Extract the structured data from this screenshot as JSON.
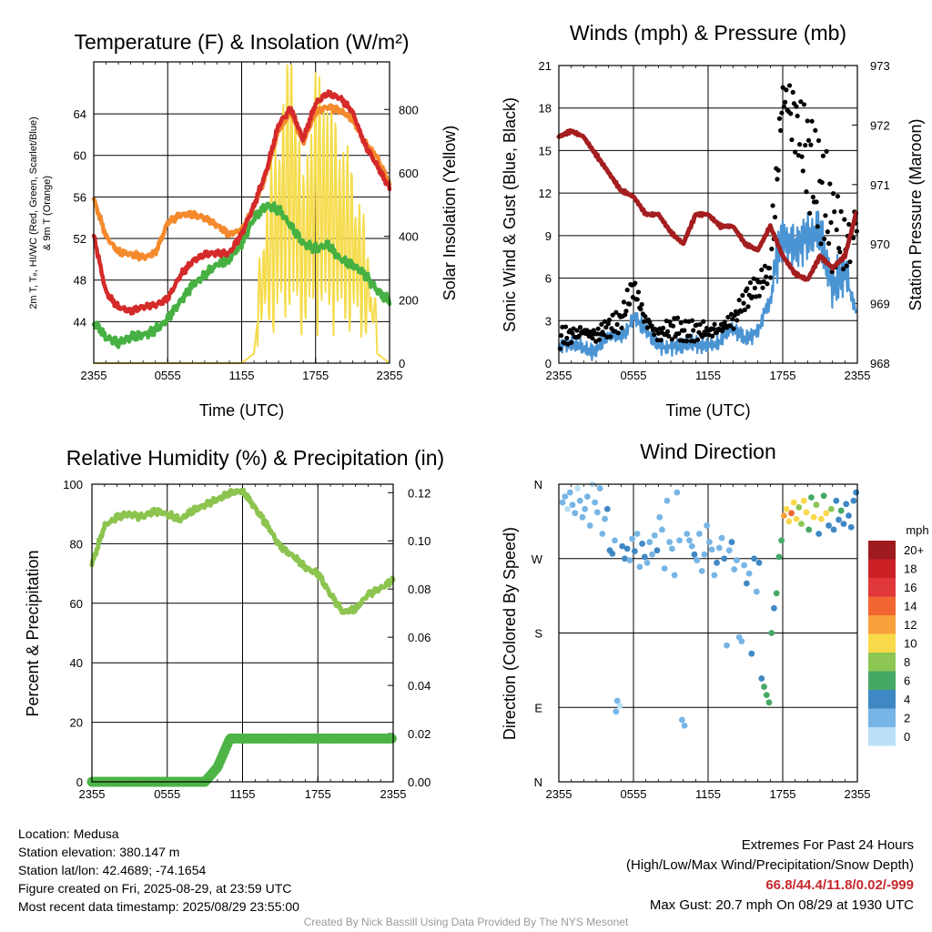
{
  "colors": {
    "temp_red": "#d42a29",
    "td_green": "#46b142",
    "hiwc_scarlet": "#e8533a",
    "hiwc_blue": "#4a8fd1",
    "t9m_orange": "#f58a2c",
    "insolation_yellow": "#f6dc4e",
    "wind_blue": "#4b94d3",
    "gust_black": "#000000",
    "pressure_maroon": "#a41e20",
    "rh_green": "#8cc44f",
    "precip_green": "#4db445"
  },
  "panels": {
    "temp": {
      "title": "Temperature (F) & Insolation (W/m²)",
      "ylabel_lines": [
        "2m T, Tₑ, HI/WC (Red, Green, Scarlet/Blue)",
        "& 9m T (Orange)"
      ],
      "ylabel_right": "Solar Insolation (Yellow)",
      "xlabel": "Time (UTC)"
    },
    "wind": {
      "title": "Winds (mph) & Pressure (mb)",
      "ylabel": "Sonic Wind & Gust (Blue, Black)",
      "ylabel_right": "Station Pressure (Maroon)",
      "xlabel": "Time (UTC)"
    },
    "rh": {
      "title": "Relative Humidity (%) & Precipitation (in)",
      "ylabel": "Percent & Precipitation"
    },
    "dir": {
      "title": "Wind Direction",
      "ylabel": "Direction (Colored By Speed)",
      "legend_title": "mph",
      "legend_labels": [
        "20+",
        "18",
        "16",
        "14",
        "12",
        "10",
        "8",
        "6",
        "4",
        "2",
        "0"
      ]
    }
  },
  "info": {
    "location": "Location: Medusa",
    "elevation": "Station elevation: 380.147 m",
    "latlon": "Station lat/lon: 42.4689; -74.1654",
    "created": "Figure created on Fri, 2025-08-29, at 23:59 UTC",
    "recent": "Most recent data timestamp: 2025/08/29 23:55:00"
  },
  "extremes": {
    "header": "Extremes For Past 24 Hours",
    "subheader": "(High/Low/Max Wind/Precipitation/Snow Depth)",
    "values": "66.8/44.4/11.8/0.02/-999",
    "gust": "Max Gust: 20.7 mph On 08/29 at 1930 UTC"
  },
  "credit": "Created By Nick Bassill Using Data Provided By The NYS Mesonet",
  "chart_data": [
    {
      "type": "line",
      "title": "Temperature (F) & Insolation (W/m²)",
      "xlabel": "Time (UTC)",
      "x_ticks": [
        "2355",
        "0555",
        "1155",
        "1755",
        "2355"
      ],
      "ylim": [
        40,
        69
      ],
      "y_ticks": [
        44,
        48,
        52,
        56,
        60,
        64
      ],
      "y2lim": [
        0,
        950
      ],
      "y2_ticks": [
        0,
        200,
        400,
        600,
        800
      ],
      "hours": [
        0,
        1,
        2,
        3,
        4,
        5,
        6,
        7,
        8,
        9,
        10,
        11,
        12,
        13,
        14,
        15,
        16,
        17,
        18,
        19,
        20,
        21,
        22,
        23,
        24
      ],
      "series": [
        {
          "name": "2m T",
          "color": "#d42a29",
          "values": [
            52.3,
            46.8,
            45.4,
            45.0,
            45.4,
            45.6,
            46.2,
            48.4,
            49.8,
            50.5,
            50.6,
            50.6,
            52.4,
            55.2,
            58.5,
            63.0,
            64.5,
            61.5,
            65.0,
            66.0,
            65.5,
            64.2,
            61.0,
            59.0,
            56.8
          ]
        },
        {
          "name": "Td",
          "color": "#46b142",
          "values": [
            44.0,
            42.5,
            42.0,
            42.5,
            42.7,
            43.2,
            44.3,
            45.9,
            47.5,
            48.5,
            49.5,
            50.0,
            51.5,
            54.0,
            55.2,
            54.8,
            53.2,
            51.5,
            51.0,
            51.5,
            50.0,
            49.5,
            48.5,
            47.0,
            46.0
          ]
        },
        {
          "name": "9m T",
          "color": "#f58a2c",
          "values": [
            55.8,
            52.2,
            50.7,
            50.5,
            50.2,
            50.6,
            53.5,
            54.3,
            54.3,
            54.0,
            53.3,
            52.4,
            52.8,
            55.0,
            58.2,
            62.5,
            64.2,
            61.2,
            64.2,
            64.7,
            64.3,
            63.5,
            61.2,
            59.8,
            57.2
          ]
        },
        {
          "name": "Solar Insolation",
          "color": "#f6dc4e",
          "axis": "right",
          "values": [
            0,
            0,
            0,
            0,
            0,
            0,
            0,
            0,
            0,
            0,
            0,
            0,
            0,
            30,
            400,
            620,
            940,
            450,
            800,
            720,
            600,
            500,
            300,
            30,
            0
          ]
        }
      ]
    },
    {
      "type": "scatter",
      "title": "Winds (mph) & Pressure (mb)",
      "xlabel": "Time (UTC)",
      "x_ticks": [
        "2355",
        "0555",
        "1155",
        "1755",
        "2355"
      ],
      "ylim": [
        0,
        21
      ],
      "y_ticks": [
        0,
        3,
        6,
        9,
        12,
        15,
        18,
        21
      ],
      "y2lim": [
        968,
        973
      ],
      "y2_ticks": [
        968,
        969,
        970,
        971,
        972,
        973
      ],
      "hours": [
        0,
        1,
        2,
        3,
        4,
        5,
        6,
        7,
        8,
        9,
        10,
        11,
        12,
        13,
        14,
        15,
        16,
        17,
        18,
        19,
        20,
        21,
        22,
        23,
        24
      ],
      "series": [
        {
          "name": "Sonic Wind",
          "color": "#4b94d3",
          "values": [
            1.2,
            1.0,
            1.3,
            1.0,
            1.6,
            2.0,
            3.5,
            2.0,
            1.2,
            1.5,
            1.0,
            1.2,
            1.5,
            1.6,
            2.2,
            2.0,
            2.5,
            4.0,
            9.5,
            9.0,
            8.0,
            9.0,
            6.5,
            6.0,
            3.0
          ]
        },
        {
          "name": "Gust",
          "color": "#000000",
          "values": [
            1.8,
            2.0,
            2.2,
            2.0,
            2.5,
            3.0,
            5.5,
            3.0,
            2.0,
            2.5,
            2.2,
            2.3,
            2.3,
            2.4,
            3.0,
            4.5,
            5.5,
            6.5,
            19.0,
            17.0,
            15.0,
            12.0,
            10.0,
            8.0,
            10.0
          ]
        },
        {
          "name": "Station Pressure",
          "color": "#a41e20",
          "axis": "right",
          "values": [
            971.8,
            971.9,
            971.8,
            971.5,
            971.2,
            970.9,
            970.8,
            970.5,
            970.5,
            970.2,
            970.0,
            970.5,
            970.5,
            970.3,
            970.3,
            970.0,
            969.9,
            970.3,
            969.8,
            969.5,
            969.4,
            969.8,
            969.6,
            969.8,
            970.6
          ]
        }
      ]
    },
    {
      "type": "line",
      "title": "Relative Humidity (%) & Precipitation (in)",
      "x_ticks": [
        "2355",
        "0555",
        "1155",
        "1755",
        "2355"
      ],
      "ylim": [
        0,
        100
      ],
      "y_ticks": [
        0,
        20,
        40,
        60,
        80,
        100
      ],
      "y2lim": [
        0,
        0.1235
      ],
      "y2_ticks": [
        0.0,
        0.02,
        0.04,
        0.06,
        0.08,
        0.1,
        0.12
      ],
      "hours": [
        0,
        1,
        2,
        3,
        4,
        5,
        6,
        7,
        8,
        9,
        10,
        11,
        12,
        13,
        14,
        15,
        16,
        17,
        18,
        19,
        20,
        21,
        22,
        23,
        24
      ],
      "series": [
        {
          "name": "Relative Humidity",
          "color": "#8cc44f",
          "values": [
            73,
            86,
            89,
            90,
            89,
            91,
            90,
            88,
            91,
            93,
            95,
            97,
            98,
            92,
            86,
            79,
            76,
            72,
            70,
            63,
            57,
            58,
            63,
            65,
            68
          ]
        },
        {
          "name": "Precipitation",
          "color": "#4db445",
          "axis": "right",
          "values": [
            0,
            0,
            0,
            0,
            0,
            0,
            0,
            0,
            0,
            0,
            0.006,
            0.018,
            0.018,
            0.018,
            0.018,
            0.018,
            0.018,
            0.018,
            0.018,
            0.018,
            0.018,
            0.018,
            0.018,
            0.018,
            0.018
          ]
        }
      ]
    },
    {
      "type": "scatter",
      "title": "Wind Direction",
      "x_ticks": [
        "2355",
        "0555",
        "1155",
        "1755",
        "2355"
      ],
      "y_ticks": [
        "N",
        "E",
        "S",
        "W",
        "N"
      ],
      "ylim": [
        0,
        360
      ],
      "color_scale_mph": [
        "20+",
        "18",
        "16",
        "14",
        "12",
        "10",
        "8",
        "6",
        "4",
        "2",
        "0"
      ],
      "color_scale": [
        "#9e1a1e",
        "#cc2027",
        "#e0383a",
        "#f06530",
        "#f8a13c",
        "#f8d94a",
        "#8dc653",
        "#45a865",
        "#3f88c4",
        "#76b5e5",
        "#b9e0f7"
      ],
      "points": [
        [
          0.3,
          338,
          1
        ],
        [
          0.5,
          345,
          1
        ],
        [
          0.7,
          330,
          0
        ],
        [
          0.9,
          350,
          1
        ],
        [
          1.1,
          335,
          1
        ],
        [
          1.3,
          325,
          1
        ],
        [
          1.5,
          355,
          0
        ],
        [
          1.7,
          340,
          1
        ],
        [
          1.9,
          320,
          2
        ],
        [
          2.1,
          330,
          1
        ],
        [
          2.3,
          345,
          2
        ],
        [
          2.5,
          310,
          1
        ],
        [
          2.7,
          360,
          0
        ],
        [
          2.9,
          338,
          2
        ],
        [
          3.1,
          326,
          1
        ],
        [
          3.3,
          355,
          1
        ],
        [
          3.5,
          300,
          2
        ],
        [
          3.7,
          318,
          2
        ],
        [
          3.9,
          330,
          3
        ],
        [
          4.1,
          280,
          3
        ],
        [
          4.3,
          276,
          3
        ],
        [
          4.5,
          292,
          2
        ],
        [
          4.6,
          85,
          1
        ],
        [
          4.7,
          98,
          1
        ],
        [
          4.9,
          92,
          0
        ],
        [
          5.1,
          285,
          3
        ],
        [
          5.3,
          270,
          3
        ],
        [
          5.5,
          282,
          4
        ],
        [
          5.7,
          268,
          2
        ],
        [
          5.9,
          294,
          2
        ],
        [
          6.1,
          279,
          3
        ],
        [
          6.3,
          300,
          2
        ],
        [
          6.5,
          260,
          2
        ],
        [
          6.7,
          288,
          3
        ],
        [
          6.9,
          272,
          3
        ],
        [
          7.1,
          265,
          2
        ],
        [
          7.3,
          290,
          2
        ],
        [
          7.5,
          275,
          1
        ],
        [
          7.7,
          298,
          2
        ],
        [
          7.9,
          280,
          3
        ],
        [
          8.1,
          320,
          2
        ],
        [
          8.3,
          305,
          2
        ],
        [
          8.5,
          258,
          1
        ],
        [
          8.7,
          340,
          2
        ],
        [
          8.9,
          290,
          2
        ],
        [
          9.1,
          282,
          2
        ],
        [
          9.3,
          250,
          1
        ],
        [
          9.5,
          350,
          1
        ],
        [
          9.7,
          292,
          2
        ],
        [
          9.9,
          75,
          1
        ],
        [
          10.1,
          68,
          1
        ],
        [
          10.3,
          300,
          2
        ],
        [
          10.5,
          292,
          2
        ],
        [
          10.7,
          285,
          1
        ],
        [
          10.9,
          275,
          3
        ],
        [
          11.1,
          268,
          2
        ],
        [
          11.3,
          300,
          2
        ],
        [
          11.5,
          255,
          1
        ],
        [
          11.7,
          275,
          2
        ],
        [
          11.9,
          310,
          2
        ],
        [
          12.1,
          290,
          2
        ],
        [
          12.3,
          281,
          1
        ],
        [
          12.5,
          250,
          2
        ],
        [
          12.7,
          265,
          3
        ],
        [
          12.9,
          283,
          2
        ],
        [
          13.1,
          295,
          2
        ],
        [
          13.3,
          270,
          3
        ],
        [
          13.5,
          165,
          2
        ],
        [
          13.7,
          280,
          2
        ],
        [
          13.9,
          290,
          3
        ],
        [
          14.1,
          257,
          2
        ],
        [
          14.3,
          268,
          2
        ],
        [
          14.5,
          175,
          1
        ],
        [
          14.7,
          170,
          2
        ],
        [
          14.9,
          262,
          2
        ],
        [
          15.1,
          240,
          3
        ],
        [
          15.3,
          252,
          2
        ],
        [
          15.5,
          155,
          3
        ],
        [
          15.7,
          270,
          3
        ],
        [
          15.9,
          230,
          2
        ],
        [
          16.1,
          265,
          3
        ],
        [
          16.3,
          125,
          4
        ],
        [
          16.5,
          115,
          6
        ],
        [
          16.7,
          105,
          5
        ],
        [
          16.9,
          96,
          5
        ],
        [
          17.1,
          180,
          6
        ],
        [
          17.3,
          210,
          4
        ],
        [
          17.5,
          228,
          5
        ],
        [
          17.7,
          272,
          6
        ],
        [
          17.9,
          292,
          6
        ],
        [
          18.1,
          322,
          11
        ],
        [
          18.3,
          330,
          9
        ],
        [
          18.5,
          315,
          10
        ],
        [
          18.7,
          325,
          13
        ],
        [
          18.9,
          338,
          9
        ],
        [
          19.1,
          318,
          10
        ],
        [
          19.3,
          332,
          8
        ],
        [
          19.5,
          312,
          7
        ],
        [
          19.7,
          340,
          9
        ],
        [
          19.9,
          326,
          10
        ],
        [
          20.1,
          305,
          5
        ],
        [
          20.3,
          344,
          6
        ],
        [
          20.5,
          320,
          9
        ],
        [
          20.7,
          335,
          8
        ],
        [
          20.9,
          300,
          4
        ],
        [
          21.1,
          318,
          9
        ],
        [
          21.3,
          346,
          5
        ],
        [
          21.5,
          325,
          10
        ],
        [
          21.7,
          310,
          4
        ],
        [
          21.9,
          330,
          8
        ],
        [
          22.1,
          305,
          3
        ],
        [
          22.3,
          340,
          4
        ],
        [
          22.5,
          317,
          4
        ],
        [
          22.7,
          328,
          5
        ],
        [
          22.9,
          312,
          3
        ],
        [
          23.1,
          336,
          4
        ],
        [
          23.3,
          322,
          4
        ],
        [
          23.5,
          308,
          3
        ],
        [
          23.7,
          340,
          4
        ],
        [
          23.9,
          350,
          3
        ]
      ]
    }
  ]
}
